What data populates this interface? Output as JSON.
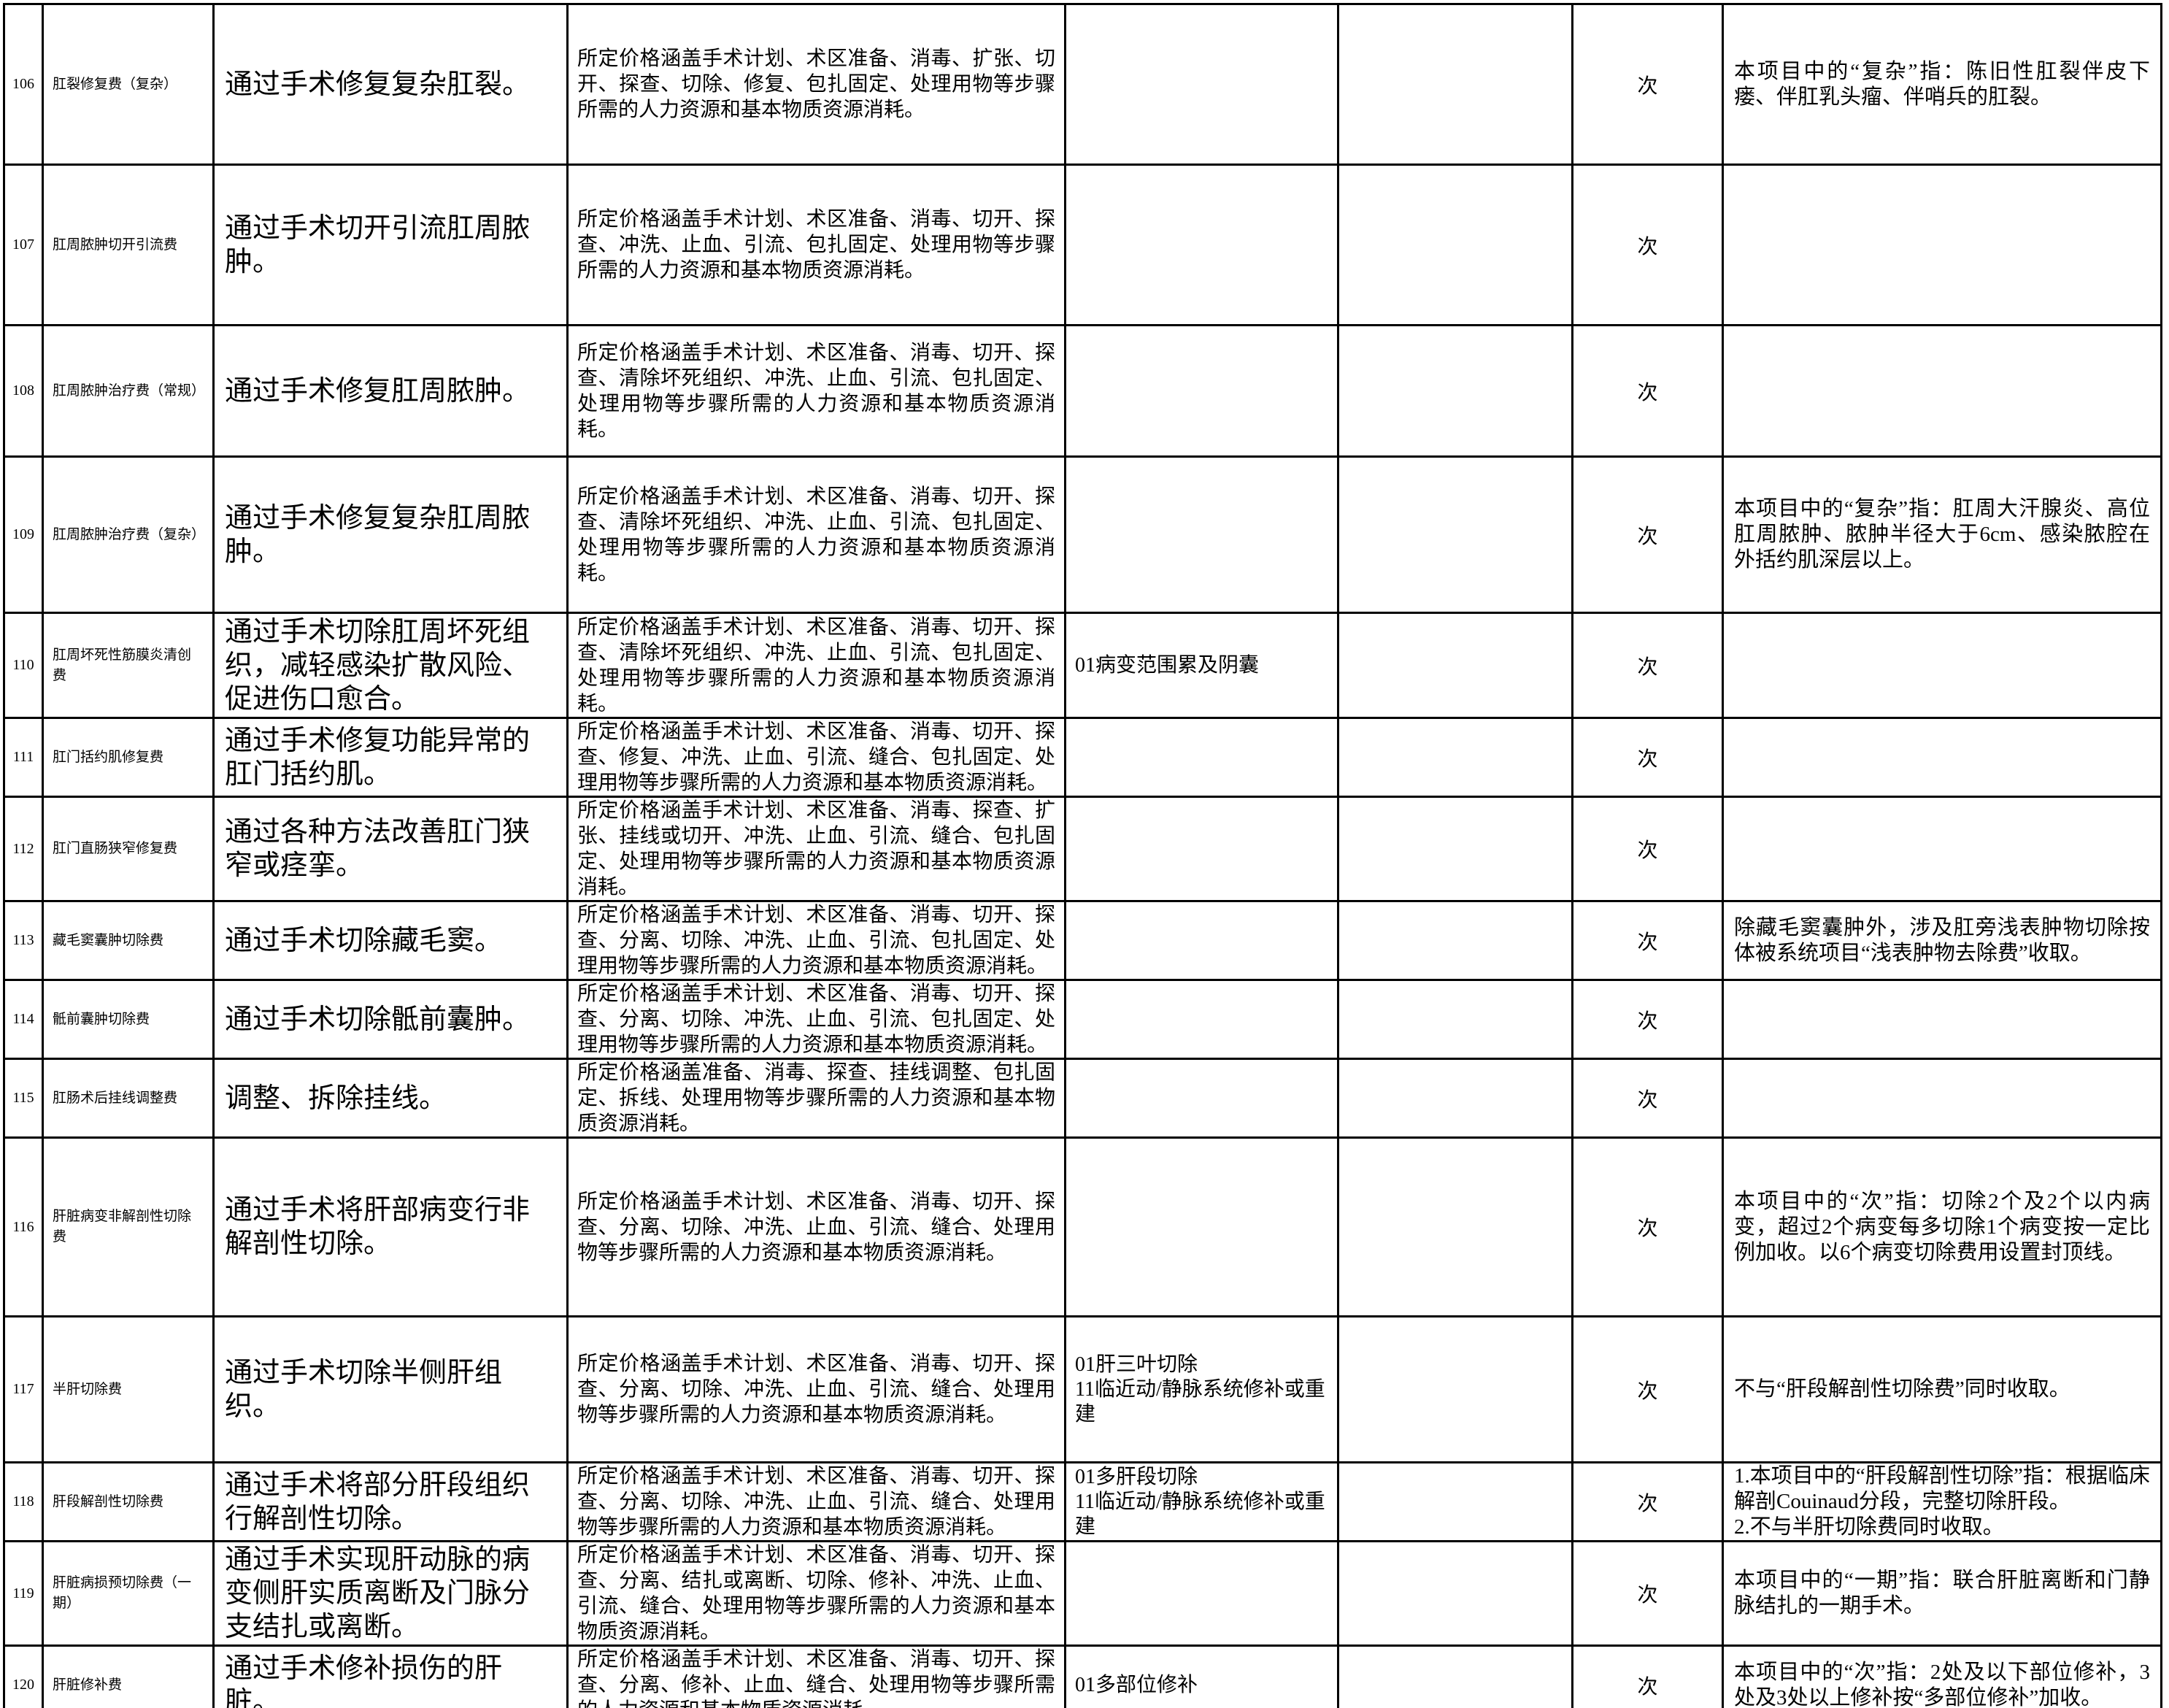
{
  "page": {
    "background_color": "#ffffff",
    "grid_line_color": "#000000"
  },
  "table": {
    "unit_label": "次",
    "rows": [
      {
        "no": "106",
        "name": "肛裂修复费（复杂）",
        "output": "通过手术修复复杂肛裂。",
        "composition": "所定价格涵盖手术计划、术区准备、消毒、扩张、切开、探查、切除、修复、包扎固定、处理用物等步骤所需的人力资源和基本物质资源消耗。",
        "surcharge": [],
        "extension": "",
        "unit": "次",
        "note": [
          "本项目中的“复杂”指：陈旧性肛裂伴皮下瘘、伴肛乳头瘤、伴哨兵的肛裂。"
        ]
      },
      {
        "no": "107",
        "name": "肛周脓肿切开引流费",
        "output": "通过手术切开引流肛周脓肿。",
        "composition": "所定价格涵盖手术计划、术区准备、消毒、切开、探查、冲洗、止血、引流、包扎固定、处理用物等步骤所需的人力资源和基本物质资源消耗。",
        "surcharge": [],
        "extension": "",
        "unit": "次",
        "note": []
      },
      {
        "no": "108",
        "name": "肛周脓肿治疗费（常规）",
        "output": "通过手术修复肛周脓肿。",
        "composition": "所定价格涵盖手术计划、术区准备、消毒、切开、探查、清除坏死组织、冲洗、止血、引流、包扎固定、处理用物等步骤所需的人力资源和基本物质资源消耗。",
        "surcharge": [],
        "extension": "",
        "unit": "次",
        "note": []
      },
      {
        "no": "109",
        "name": "肛周脓肿治疗费（复杂）",
        "output": "通过手术修复复杂肛周脓肿。",
        "composition": "所定价格涵盖手术计划、术区准备、消毒、切开、探查、清除坏死组织、冲洗、止血、引流、包扎固定、处理用物等步骤所需的人力资源和基本物质资源消耗。",
        "surcharge": [],
        "extension": "",
        "unit": "次",
        "note": [
          "本项目中的“复杂”指：肛周大汗腺炎、高位肛周脓肿、脓肿半径大于6cm、感染脓腔在外括约肌深层以上。"
        ]
      },
      {
        "no": "110",
        "name": "肛周坏死性筋膜炎清创费",
        "output": "通过手术切除肛周坏死组织，减轻感染扩散风险、促进伤口愈合。",
        "composition": "所定价格涵盖手术计划、术区准备、消毒、切开、探查、清除坏死组织、冲洗、止血、引流、包扎固定、处理用物等步骤所需的人力资源和基本物质资源消耗。",
        "surcharge": [
          "01病变范围累及阴囊"
        ],
        "extension": "",
        "unit": "次",
        "note": []
      },
      {
        "no": "111",
        "name": "肛门括约肌修复费",
        "output": "通过手术修复功能异常的肛门括约肌。",
        "composition": "所定价格涵盖手术计划、术区准备、消毒、切开、探查、修复、冲洗、止血、引流、缝合、包扎固定、处理用物等步骤所需的人力资源和基本物质资源消耗。",
        "surcharge": [],
        "extension": "",
        "unit": "次",
        "note": []
      },
      {
        "no": "112",
        "name": "肛门直肠狭窄修复费",
        "output": "通过各种方法改善肛门狭窄或痉挛。",
        "composition": "所定价格涵盖手术计划、术区准备、消毒、探查、扩张、挂线或切开、冲洗、止血、引流、缝合、包扎固定、处理用物等步骤所需的人力资源和基本物质资源消耗。",
        "surcharge": [],
        "extension": "",
        "unit": "次",
        "note": []
      },
      {
        "no": "113",
        "name": "藏毛窦囊肿切除费",
        "output": "通过手术切除藏毛窦。",
        "composition": "所定价格涵盖手术计划、术区准备、消毒、切开、探查、分离、切除、冲洗、止血、引流、包扎固定、处理用物等步骤所需的人力资源和基本物质资源消耗。",
        "surcharge": [],
        "extension": "",
        "unit": "次",
        "note": [
          "除藏毛窦囊肿外，涉及肛旁浅表肿物切除按体被系统项目“浅表肿物去除费”收取。"
        ]
      },
      {
        "no": "114",
        "name": "骶前囊肿切除费",
        "output": "通过手术切除骶前囊肿。",
        "composition": "所定价格涵盖手术计划、术区准备、消毒、切开、探查、分离、切除、冲洗、止血、引流、包扎固定、处理用物等步骤所需的人力资源和基本物质资源消耗。",
        "surcharge": [],
        "extension": "",
        "unit": "次",
        "note": []
      },
      {
        "no": "115",
        "name": "肛肠术后挂线调整费",
        "output": "调整、拆除挂线。",
        "composition": "所定价格涵盖准备、消毒、探查、挂线调整、包扎固定、拆线、处理用物等步骤所需的人力资源和基本物质资源消耗。",
        "surcharge": [],
        "extension": "",
        "unit": "次",
        "note": []
      },
      {
        "no": "116",
        "name": "肝脏病变非解剖性切除费",
        "output": "通过手术将肝部病变行非解剖性切除。",
        "composition": "所定价格涵盖手术计划、术区准备、消毒、切开、探查、分离、切除、冲洗、止血、引流、缝合、处理用物等步骤所需的人力资源和基本物质资源消耗。",
        "surcharge": [],
        "extension": "",
        "unit": "次",
        "note": [
          "本项目中的“次”指：切除2个及2个以内病变，超过2个病变每多切除1个病变按一定比例加收。以6个病变切除费用设置封顶线。"
        ]
      },
      {
        "no": "117",
        "name": "半肝切除费",
        "output": "通过手术切除半侧肝组织。",
        "composition": "所定价格涵盖手术计划、术区准备、消毒、切开、探查、分离、切除、冲洗、止血、引流、缝合、处理用物等步骤所需的人力资源和基本物质资源消耗。",
        "surcharge": [
          "01肝三叶切除",
          "11临近动/静脉系统修补或重建"
        ],
        "extension": "",
        "unit": "次",
        "note": [
          "不与“肝段解剖性切除费”同时收取。"
        ]
      },
      {
        "no": "118",
        "name": "肝段解剖性切除费",
        "output": "通过手术将部分肝段组织行解剖性切除。",
        "composition": "所定价格涵盖手术计划、术区准备、消毒、切开、探查、分离、切除、冲洗、止血、引流、缝合、处理用物等步骤所需的人力资源和基本物质资源消耗。",
        "surcharge": [
          "01多肝段切除",
          "11临近动/静脉系统修补或重建"
        ],
        "extension": "",
        "unit": "次",
        "note": [
          "1.本项目中的“肝段解剖性切除”指：根据临床解剖Couinaud分段，完整切除肝段。",
          "2.不与半肝切除费同时收取。"
        ]
      },
      {
        "no": "119",
        "name": "肝脏病损预切除费（一期）",
        "output": "通过手术实现肝动脉的病变侧肝实质离断及门脉分支结扎或离断。",
        "composition": "所定价格涵盖手术计划、术区准备、消毒、切开、探查、分离、结扎或离断、切除、修补、冲洗、止血、引流、缝合、处理用物等步骤所需的人力资源和基本物质资源消耗。",
        "surcharge": [],
        "extension": "",
        "unit": "次",
        "note": [
          "本项目中的“一期”指：联合肝脏离断和门静脉结扎的一期手术。"
        ]
      },
      {
        "no": "120",
        "name": "肝脏修补费",
        "output": "通过手术修补损伤的肝脏。",
        "composition": "所定价格涵盖手术计划、术区准备、消毒、切开、探查、分离、修补、止血、缝合、处理用物等步骤所需的人力资源和基本物质资源消耗。",
        "surcharge": [
          "01多部位修补"
        ],
        "extension": "",
        "unit": "次",
        "note": [
          "本项目中的“次”指：2处及以下部位修补，3处及3处以上修补按“多部位修补”加收。"
        ]
      }
    ]
  }
}
